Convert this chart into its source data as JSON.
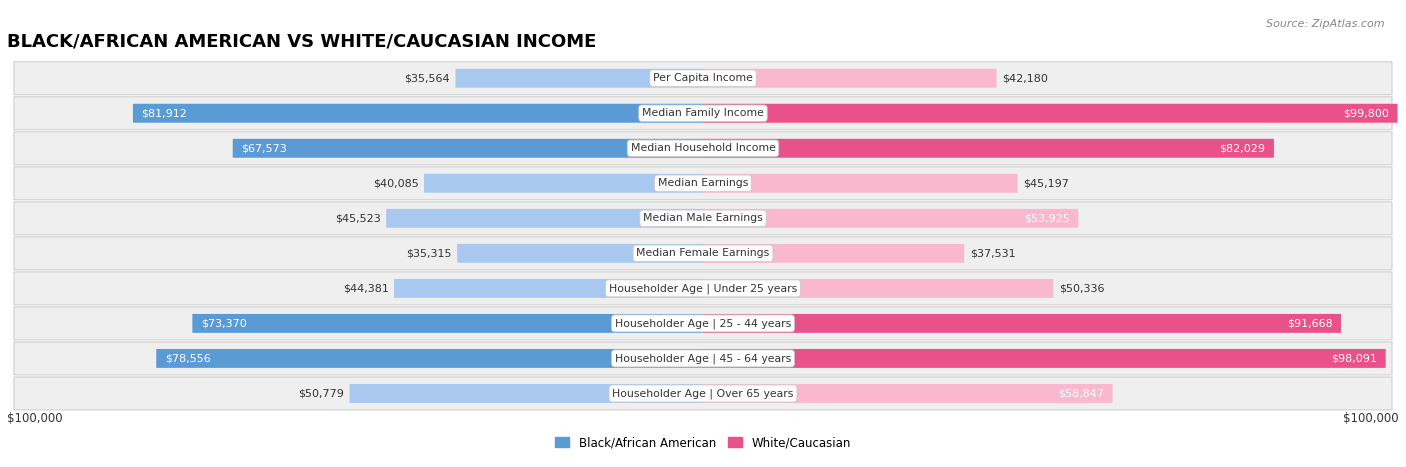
{
  "title": "BLACK/AFRICAN AMERICAN VS WHITE/CAUCASIAN INCOME",
  "source": "Source: ZipAtlas.com",
  "categories": [
    "Per Capita Income",
    "Median Family Income",
    "Median Household Income",
    "Median Earnings",
    "Median Male Earnings",
    "Median Female Earnings",
    "Householder Age | Under 25 years",
    "Householder Age | 25 - 44 years",
    "Householder Age | 45 - 64 years",
    "Householder Age | Over 65 years"
  ],
  "black_values": [
    35564,
    81912,
    67573,
    40085,
    45523,
    35315,
    44381,
    73370,
    78556,
    50779
  ],
  "white_values": [
    42180,
    99800,
    82029,
    45197,
    53925,
    37531,
    50336,
    91668,
    98091,
    58847
  ],
  "max_value": 100000,
  "black_color_light": "#a8c8f0",
  "black_color_dark": "#5b9bd5",
  "white_color_light": "#f9b8ce",
  "white_color_dark": "#e8518a",
  "black_label": "Black/African American",
  "white_label": "White/Caucasian",
  "bar_height": 0.52,
  "row_bg_color": "#f0f0f0",
  "row_border_color": "#d8d8d8",
  "label_fontsize": 8.2,
  "title_fontsize": 13,
  "xlabel_left": "$100,000",
  "xlabel_right": "$100,000",
  "inside_label_threshold": 0.52
}
